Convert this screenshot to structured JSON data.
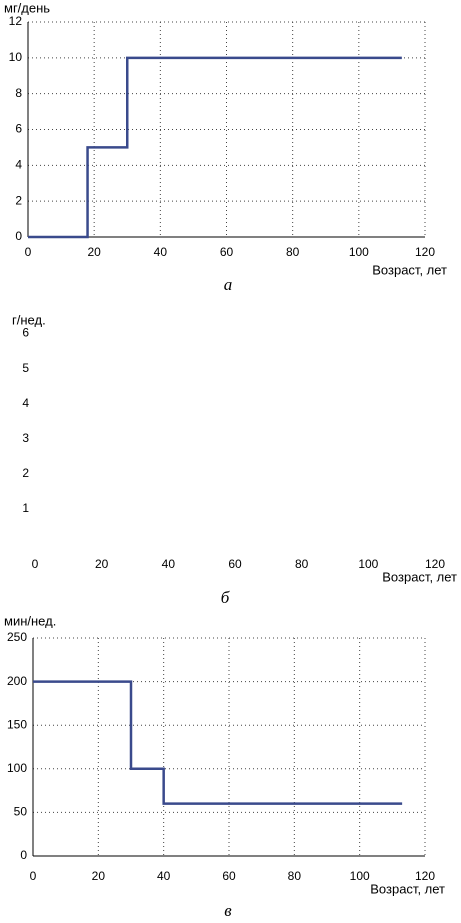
{
  "chart_data": [
    {
      "type": "line",
      "y_label": "мг/день",
      "x_label": "Возраст, лет",
      "caption": "а",
      "x": [
        0,
        18,
        18,
        30,
        30,
        113
      ],
      "values": [
        0,
        0,
        5,
        5,
        10,
        10
      ],
      "color": "#3a4a8c",
      "xlim": [
        0,
        120
      ],
      "xticks": [
        0,
        20,
        40,
        60,
        80,
        100,
        120
      ],
      "ylim": [
        0,
        12
      ],
      "yticks": [
        0,
        2,
        4,
        6,
        8,
        10,
        12
      ],
      "grid": true,
      "axis_lines": true
    },
    {
      "type": "line",
      "y_label": "г/нед.",
      "x_label": "Возраст, лет",
      "caption": "б",
      "xlim": [
        0,
        120
      ],
      "xticks": [
        0,
        20,
        40,
        60,
        80,
        100,
        120
      ],
      "ylim": [
        0,
        6.5
      ],
      "yticks": [
        1,
        2,
        3,
        4,
        5,
        6
      ],
      "grid": false,
      "axis_lines": false
    },
    {
      "type": "line",
      "y_label": "мин/нед.",
      "x_label": "Возраст, лет",
      "caption": "в",
      "x": [
        0,
        30,
        30,
        40,
        40,
        113
      ],
      "values": [
        200,
        200,
        100,
        100,
        60,
        60
      ],
      "color": "#3a4a8c",
      "xlim": [
        0,
        120
      ],
      "xticks": [
        0,
        20,
        40,
        60,
        80,
        100,
        120
      ],
      "ylim": [
        0,
        250
      ],
      "yticks": [
        0,
        50,
        100,
        150,
        200,
        250
      ],
      "grid": true,
      "axis_lines": true
    }
  ]
}
